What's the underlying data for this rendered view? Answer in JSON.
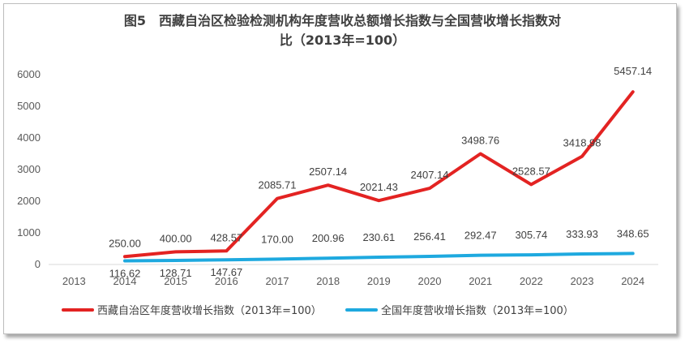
{
  "chart_data": {
    "type": "line",
    "title_line1": "图5　西藏自治区检验检测机构年度营收总额增长指数与全国营收增长指数对",
    "title_line2": "比（2013年=100）",
    "categories": [
      "2013",
      "2014",
      "2015",
      "2016",
      "2017",
      "2018",
      "2019",
      "2020",
      "2021",
      "2022",
      "2023",
      "2024"
    ],
    "ylim": [
      0,
      6000
    ],
    "yticks": [
      "0",
      "1000",
      "2000",
      "3000",
      "4000",
      "5000",
      "6000"
    ],
    "grid": false,
    "legend_position": "bottom",
    "series": [
      {
        "name": "西藏自治区年度营收增长指数（2013年=100）",
        "color": "#e32322",
        "values": [
          null,
          250.0,
          400.0,
          428.57,
          2085.71,
          2507.14,
          2021.43,
          2407.14,
          3498.76,
          2528.57,
          3418.98,
          5457.14
        ],
        "labels": [
          "",
          "250.00",
          "400.00",
          "428.57",
          "2085.71",
          "2507.14",
          "2021.43",
          "2407.14",
          "3498.76",
          "2528.57",
          "3418.98",
          "5457.14"
        ]
      },
      {
        "name": "全国年度营收增长指数（2013年=100）",
        "color": "#1ea9df",
        "values": [
          null,
          116.62,
          128.71,
          147.67,
          170.0,
          200.96,
          230.61,
          256.41,
          292.47,
          305.74,
          333.93,
          348.65
        ],
        "labels": [
          "",
          "116.62",
          "128.71",
          "147.67",
          "170.00",
          "200.96",
          "230.61",
          "256.41",
          "292.47",
          "305.74",
          "333.93",
          "348.65"
        ]
      }
    ]
  }
}
